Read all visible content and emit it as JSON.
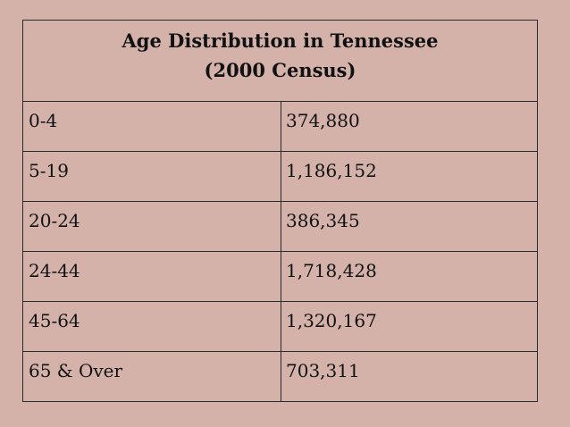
{
  "table": {
    "title_line1": "Age Distribution in Tennessee",
    "title_line2": "(2000 Census)",
    "rows": [
      {
        "age_group": "0-4",
        "population": "374,880"
      },
      {
        "age_group": "5-19",
        "population": "1,186,152"
      },
      {
        "age_group": "20-24",
        "population": "386,345"
      },
      {
        "age_group": "24-44",
        "population": "1,718,428"
      },
      {
        "age_group": "45-64",
        "population": "1,320,167"
      },
      {
        "age_group": "65 & Over",
        "population": "703,311"
      }
    ]
  },
  "colors": {
    "background": "#d4b2aa",
    "border": "#2a2a2a",
    "text": "#111111"
  }
}
